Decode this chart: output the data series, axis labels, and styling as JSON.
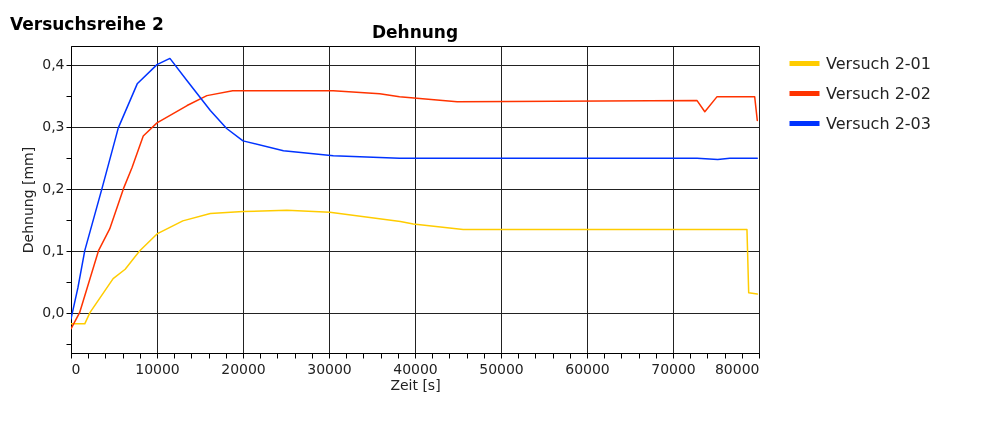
{
  "chart_data": {
    "type": "line",
    "title": "Versuchsreihe 2",
    "subtitle": "Dehnung",
    "xlabel": "Zeit [s]",
    "ylabel": "Dehnung [mm]",
    "xlim": [
      0,
      80000
    ],
    "xticks": [
      0,
      {
        "value": 2000,
        "label": null
      },
      {
        "value": 4000,
        "label": null
      },
      {
        "value": 6000,
        "label": null
      },
      {
        "value": 8000,
        "label": null
      },
      10000,
      {
        "value": 12000,
        "label": null
      },
      {
        "value": 14000,
        "label": null
      },
      {
        "value": 16000,
        "label": null
      },
      {
        "value": 18000,
        "label": null
      },
      20000,
      {
        "value": 22000,
        "label": null
      },
      {
        "value": 24000,
        "label": null
      },
      {
        "value": 26000,
        "label": null
      },
      {
        "value": 28000,
        "label": null
      },
      30000,
      {
        "value": 32000,
        "label": null
      },
      {
        "value": 34000,
        "label": null
      },
      {
        "value": 36000,
        "label": null
      },
      {
        "value": 38000,
        "label": null
      },
      40000,
      {
        "value": 42000,
        "label": null
      },
      {
        "value": 44000,
        "label": null
      },
      {
        "value": 46000,
        "label": null
      },
      {
        "value": 48000,
        "label": null
      },
      50000,
      {
        "value": 52000,
        "label": null
      },
      {
        "value": 54000,
        "label": null
      },
      {
        "value": 56000,
        "label": null
      },
      {
        "value": 58000,
        "label": null
      },
      60000,
      {
        "value": 62000,
        "label": null
      },
      {
        "value": 64000,
        "label": null
      },
      {
        "value": 66000,
        "label": null
      },
      {
        "value": 68000,
        "label": null
      },
      70000,
      {
        "value": 72000,
        "label": null
      },
      {
        "value": 74000,
        "label": null
      },
      {
        "value": 76000,
        "label": null
      },
      {
        "value": 78000,
        "label": null
      },
      80000
    ],
    "ylim": [
      -0.065,
      0.43
    ],
    "yticks": [
      {
        "value": -0.05,
        "label": null
      },
      {
        "value": 0,
        "label": "0,0"
      },
      {
        "value": 0.05,
        "label": null
      },
      {
        "value": 0.1,
        "label": "0,1"
      },
      {
        "value": 0.15,
        "label": null
      },
      {
        "value": 0.2,
        "label": "0,2"
      },
      {
        "value": 0.25,
        "label": null
      },
      {
        "value": 0.3,
        "label": "0,3"
      },
      {
        "value": 0.35,
        "label": null
      },
      {
        "value": 0.4,
        "label": "0,4"
      }
    ],
    "grid": true,
    "legend": "right",
    "line_style": "solid",
    "marker": "none",
    "series": [
      {
        "name": "Versuch 2-01",
        "color": "#ffcc00",
        "x": [
          0,
          1600,
          2200,
          4900,
          6300,
          8000,
          10000,
          13000,
          16200,
          20000,
          25100,
          30100,
          38300,
          39800,
          45600,
          78600,
          78700,
          78800,
          79800
        ],
        "values": [
          -0.018,
          -0.018,
          0.0,
          0.055,
          0.07,
          0.1,
          0.127,
          0.148,
          0.16,
          0.163,
          0.165,
          0.162,
          0.147,
          0.143,
          0.134,
          0.134,
          0.084,
          0.032,
          0.03
        ]
      },
      {
        "name": "Versuch 2-02",
        "color": "#ff3300",
        "x": [
          0,
          1000,
          3200,
          4500,
          6100,
          7100,
          8400,
          10000,
          13500,
          15800,
          18800,
          30500,
          35900,
          38200,
          44900,
          72800,
          73700,
          75100,
          79500,
          79800
        ],
        "values": [
          -0.026,
          0.0,
          0.1,
          0.135,
          0.2,
          0.234,
          0.285,
          0.306,
          0.334,
          0.35,
          0.358,
          0.358,
          0.353,
          0.348,
          0.34,
          0.342,
          0.324,
          0.348,
          0.348,
          0.31
        ]
      },
      {
        "name": "Versuch 2-03",
        "color": "#0033ff",
        "x": [
          0,
          800,
          1600,
          3600,
          5500,
          7700,
          10000,
          11500,
          13500,
          16200,
          18100,
          20000,
          24700,
          30500,
          38200,
          72800,
          75200,
          76600,
          79800
        ],
        "values": [
          -0.01,
          0.04,
          0.1,
          0.2,
          0.298,
          0.369,
          0.4,
          0.41,
          0.374,
          0.326,
          0.297,
          0.277,
          0.261,
          0.253,
          0.249,
          0.249,
          0.247,
          0.249,
          0.249
        ]
      }
    ]
  }
}
